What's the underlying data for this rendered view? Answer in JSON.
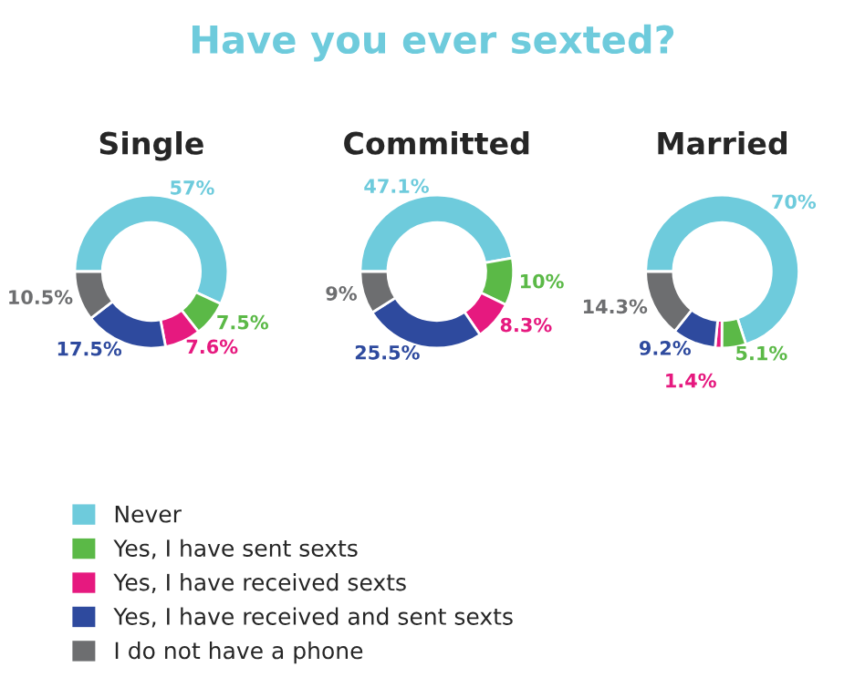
{
  "chart_data": [
    {
      "type": "other",
      "title": "Have you ever sexted?"
    },
    {
      "type": "donut",
      "title": "Single",
      "values": [
        57,
        7.5,
        7.6,
        17.5,
        10.5
      ],
      "value_labels": [
        "57%",
        "7.5%",
        "7.6%",
        "17.5%",
        "10.5%"
      ],
      "colors": [
        "#6ecbdc",
        "#5bb947",
        "#e6197f",
        "#2e4a9e",
        "#6d6e70"
      ]
    },
    {
      "type": "donut",
      "title": "Committed",
      "legend": "bottom left",
      "categories": [
        "Never",
        "Yes, I have sent sexts",
        "Yes, I have received sexts",
        "Yes, I have received and sent sexts",
        "I do not have a phone"
      ],
      "values": [
        47.1,
        10,
        8.3,
        25.5,
        9
      ],
      "value_labels": [
        "47.1%",
        "10%",
        "8.3%",
        "25.5%",
        "9%"
      ],
      "colors": [
        "#6ecbdc",
        "#5bb947",
        "#e6197f",
        "#2e4a9e",
        "#6d6e70"
      ]
    },
    {
      "type": "donut",
      "title": "Married",
      "values": [
        70,
        5.1,
        1.4,
        9.2,
        14.3
      ],
      "value_labels": [
        "70%",
        "5.1%",
        "1.4%",
        "9.2%",
        "14.3%"
      ],
      "colors": [
        "#6ecbdc",
        "#5bb947",
        "#e6197f",
        "#2e4a9e",
        "#6d6e70"
      ]
    }
  ]
}
